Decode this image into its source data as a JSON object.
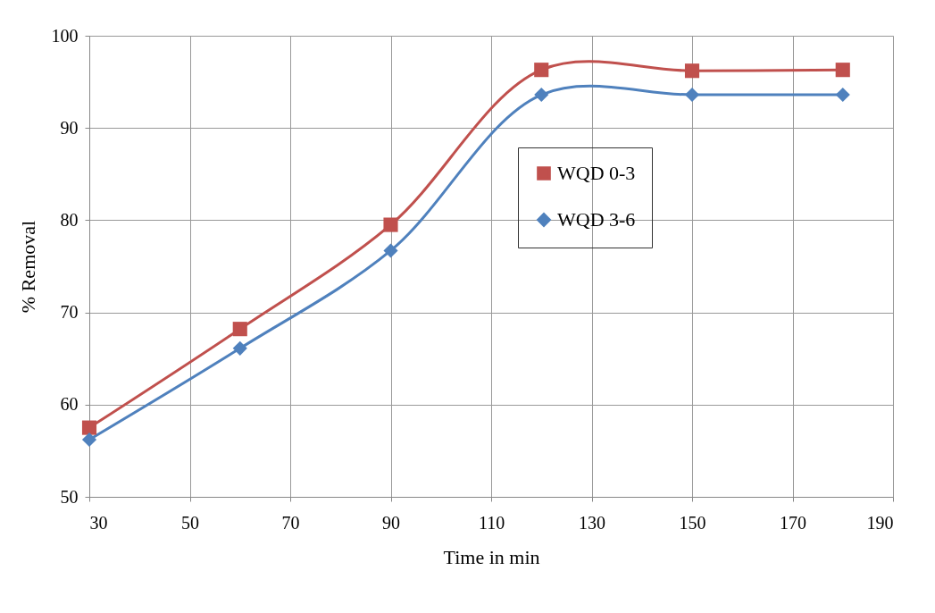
{
  "chart_data": {
    "type": "line",
    "xlabel": "Time in min",
    "ylabel": "% Removal",
    "x": [
      30,
      60,
      90,
      120,
      150,
      180
    ],
    "series": [
      {
        "name": "WQD 0-3",
        "color": "#c0504d",
        "marker": "square",
        "values": [
          57.5,
          68.2,
          79.5,
          96.3,
          96.2,
          96.3
        ]
      },
      {
        "name": "WQD 3-6",
        "color": "#4f81bd",
        "marker": "diamond",
        "values": [
          56.2,
          66.1,
          76.7,
          93.6,
          93.6,
          93.6
        ]
      }
    ],
    "xlim": [
      30,
      190
    ],
    "xticks": [
      30,
      50,
      70,
      90,
      110,
      130,
      150,
      170,
      190
    ],
    "ylim": [
      50,
      100
    ],
    "yticks": [
      50,
      60,
      70,
      80,
      90,
      100
    ],
    "grid": true,
    "legend": "top right",
    "line_style": "solid"
  }
}
